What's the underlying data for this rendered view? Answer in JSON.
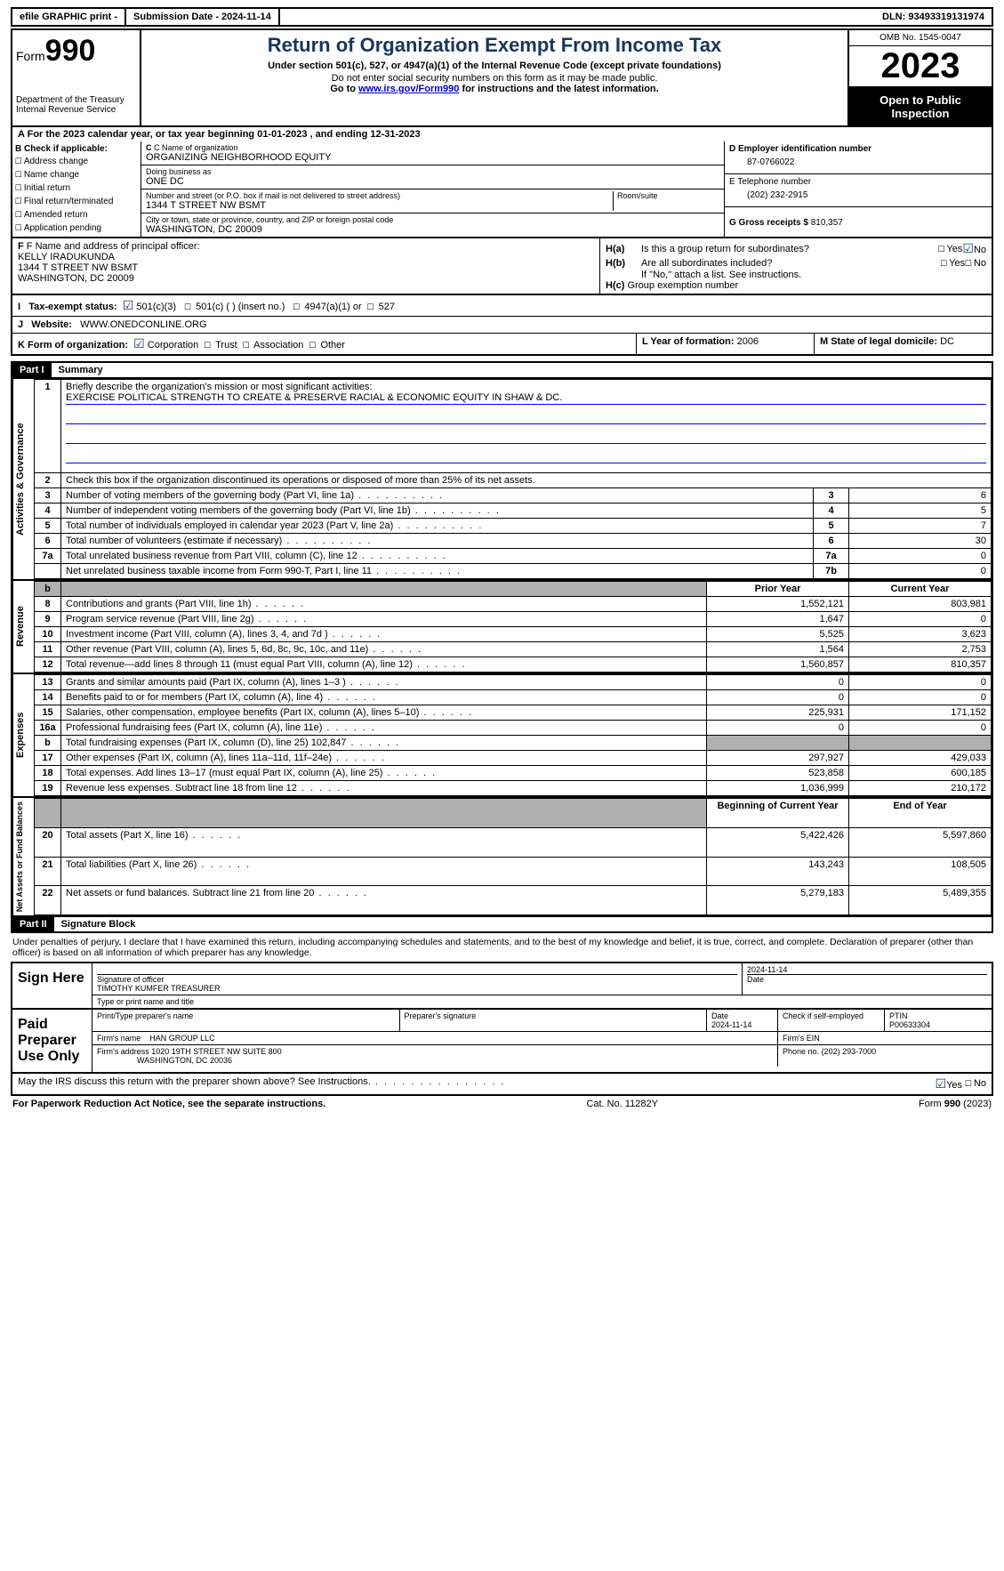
{
  "topbar": {
    "efile": "efile GRAPHIC print -",
    "submission": "Submission Date - 2024-11-14",
    "dln": "DLN: 93493319131974"
  },
  "header": {
    "form_label": "Form",
    "form_num": "990",
    "dept": "Department of the Treasury",
    "irs": "Internal Revenue Service",
    "title": "Return of Organization Exempt From Income Tax",
    "sub1": "Under section 501(c), 527, or 4947(a)(1) of the Internal Revenue Code (except private foundations)",
    "sub2": "Do not enter social security numbers on this form as it may be made public.",
    "sub3_pre": "Go to ",
    "sub3_link": "www.irs.gov/Form990",
    "sub3_post": " for instructions and the latest information.",
    "omb": "OMB No. 1545-0047",
    "year": "2023",
    "open": "Open to Public Inspection"
  },
  "lineA": "For the 2023 calendar year, or tax year beginning 01-01-2023   , and ending 12-31-2023",
  "boxB": {
    "label": "B Check if applicable:",
    "opts": [
      "Address change",
      "Name change",
      "Initial return",
      "Final return/terminated",
      "Amended return",
      "Application pending"
    ]
  },
  "boxC": {
    "name_lbl": "C Name of organization",
    "name": "ORGANIZING NEIGHBORHOOD EQUITY",
    "dba_lbl": "Doing business as",
    "dba": "ONE DC",
    "addr_lbl": "Number and street (or P.O. box if mail is not delivered to street address)",
    "room_lbl": "Room/suite",
    "addr": "1344 T STREET NW BSMT",
    "city_lbl": "City or town, state or province, country, and ZIP or foreign postal code",
    "city": "WASHINGTON, DC  20009"
  },
  "boxD": {
    "lbl": "D Employer identification number",
    "val": "87-0766022"
  },
  "boxE": {
    "lbl": "E Telephone number",
    "val": "(202) 232-2915"
  },
  "boxG": {
    "lbl": "G Gross receipts $",
    "val": "810,357"
  },
  "boxF": {
    "lbl": "F  Name and address of principal officer:",
    "name": "KELLY IRADUKUNDA",
    "addr1": "1344 T STREET NW BSMT",
    "addr2": "WASHINGTON, DC  20009"
  },
  "boxH": {
    "a": "Is this a group return for subordinates?",
    "b": "Are all subordinates included?",
    "b_note": "If \"No,\" attach a list. See instructions.",
    "c": "Group exemption number"
  },
  "lineI": {
    "lbl": "Tax-exempt status:",
    "opts": [
      "501(c)(3)",
      "501(c) (  ) (insert no.)",
      "4947(a)(1) or",
      "527"
    ]
  },
  "lineJ": {
    "lbl": "Website:",
    "val": "WWW.ONEDCONLINE.ORG"
  },
  "lineK": {
    "lbl": "K Form of organization:",
    "opts": [
      "Corporation",
      "Trust",
      "Association",
      "Other"
    ]
  },
  "lineL": {
    "lbl": "L Year of formation:",
    "val": "2006"
  },
  "lineM": {
    "lbl": "M State of legal domicile:",
    "val": "DC"
  },
  "part1": {
    "hdr": "Part I",
    "title": "Summary"
  },
  "summary": {
    "q1": "Briefly describe the organization's mission or most significant activities:",
    "mission": "EXERCISE POLITICAL STRENGTH TO CREATE & PRESERVE RACIAL & ECONOMIC EQUITY IN SHAW & DC.",
    "q2": "Check this box      if the organization discontinued its operations or disposed of more than 25% of its net assets.",
    "rows_gov": [
      {
        "n": "3",
        "d": "Number of voting members of the governing body (Part VI, line 1a)",
        "box": "3",
        "v": "6"
      },
      {
        "n": "4",
        "d": "Number of independent voting members of the governing body (Part VI, line 1b)",
        "box": "4",
        "v": "5"
      },
      {
        "n": "5",
        "d": "Total number of individuals employed in calendar year 2023 (Part V, line 2a)",
        "box": "5",
        "v": "7"
      },
      {
        "n": "6",
        "d": "Total number of volunteers (estimate if necessary)",
        "box": "6",
        "v": "30"
      },
      {
        "n": "7a",
        "d": "Total unrelated business revenue from Part VIII, column (C), line 12",
        "box": "7a",
        "v": "0"
      },
      {
        "n": "",
        "d": "Net unrelated business taxable income from Form 990-T, Part I, line 11",
        "box": "7b",
        "v": "0"
      }
    ],
    "col_prior": "Prior Year",
    "col_curr": "Current Year",
    "rows_rev": [
      {
        "n": "8",
        "d": "Contributions and grants (Part VIII, line 1h)",
        "p": "1,552,121",
        "c": "803,981"
      },
      {
        "n": "9",
        "d": "Program service revenue (Part VIII, line 2g)",
        "p": "1,647",
        "c": "0"
      },
      {
        "n": "10",
        "d": "Investment income (Part VIII, column (A), lines 3, 4, and 7d )",
        "p": "5,525",
        "c": "3,623"
      },
      {
        "n": "11",
        "d": "Other revenue (Part VIII, column (A), lines 5, 6d, 8c, 9c, 10c, and 11e)",
        "p": "1,564",
        "c": "2,753"
      },
      {
        "n": "12",
        "d": "Total revenue—add lines 8 through 11 (must equal Part VIII, column (A), line 12)",
        "p": "1,560,857",
        "c": "810,357"
      }
    ],
    "rows_exp": [
      {
        "n": "13",
        "d": "Grants and similar amounts paid (Part IX, column (A), lines 1–3 )",
        "p": "0",
        "c": "0"
      },
      {
        "n": "14",
        "d": "Benefits paid to or for members (Part IX, column (A), line 4)",
        "p": "0",
        "c": "0"
      },
      {
        "n": "15",
        "d": "Salaries, other compensation, employee benefits (Part IX, column (A), lines 5–10)",
        "p": "225,931",
        "c": "171,152"
      },
      {
        "n": "16a",
        "d": "Professional fundraising fees (Part IX, column (A), line 11e)",
        "p": "0",
        "c": "0"
      },
      {
        "n": "b",
        "d": "Total fundraising expenses (Part IX, column (D), line 25) 102,847",
        "p": "",
        "c": "",
        "shade": true
      },
      {
        "n": "17",
        "d": "Other expenses (Part IX, column (A), lines 11a–11d, 11f–24e)",
        "p": "297,927",
        "c": "429,033"
      },
      {
        "n": "18",
        "d": "Total expenses. Add lines 13–17 (must equal Part IX, column (A), line 25)",
        "p": "523,858",
        "c": "600,185"
      },
      {
        "n": "19",
        "d": "Revenue less expenses. Subtract line 18 from line 12",
        "p": "1,036,999",
        "c": "210,172"
      }
    ],
    "col_begin": "Beginning of Current Year",
    "col_end": "End of Year",
    "rows_net": [
      {
        "n": "20",
        "d": "Total assets (Part X, line 16)",
        "p": "5,422,426",
        "c": "5,597,860"
      },
      {
        "n": "21",
        "d": "Total liabilities (Part X, line 26)",
        "p": "143,243",
        "c": "108,505"
      },
      {
        "n": "22",
        "d": "Net assets or fund balances. Subtract line 21 from line 20",
        "p": "5,279,183",
        "c": "5,489,355"
      }
    ],
    "vtabs": [
      "Activities & Governance",
      "Revenue",
      "Expenses",
      "Net Assets or Fund Balances"
    ]
  },
  "part2": {
    "hdr": "Part II",
    "title": "Signature Block"
  },
  "sig": {
    "decl": "Under penalties of perjury, I declare that I have examined this return, including accompanying schedules and statements, and to the best of my knowledge and belief, it is true, correct, and complete. Declaration of preparer (other than officer) is based on all information of which preparer has any knowledge.",
    "sign_here": "Sign Here",
    "sig_officer": "Signature of officer",
    "officer_name": "TIMOTHY KUMFER  TREASURER",
    "type_name": "Type or print name and title",
    "sig_date": "2024-11-14",
    "date_lbl": "Date",
    "paid": "Paid Preparer Use Only",
    "prep_name_lbl": "Print/Type preparer's name",
    "prep_sig_lbl": "Preparer's signature",
    "prep_date": "2024-11-14",
    "check_self": "Check       if self-employed",
    "ptin_lbl": "PTIN",
    "ptin": "P00633304",
    "firm_name_lbl": "Firm's name",
    "firm_name": "HAN GROUP LLC",
    "firm_ein_lbl": "Firm's EIN",
    "firm_addr_lbl": "Firm's address",
    "firm_addr": "1020 19TH STREET NW SUITE 800",
    "firm_city": "WASHINGTON, DC  20036",
    "phone_lbl": "Phone no.",
    "phone": "(202) 293-7000",
    "discuss": "May the IRS discuss this return with the preparer shown above? See Instructions."
  },
  "footer": {
    "pra": "For Paperwork Reduction Act Notice, see the separate instructions.",
    "cat": "Cat. No. 11282Y",
    "form": "Form 990 (2023)"
  }
}
